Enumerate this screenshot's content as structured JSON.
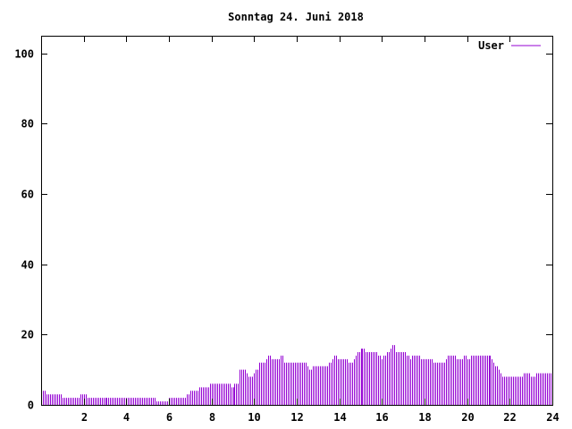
{
  "chart_data": {
    "type": "bar",
    "title": "Sonntag 24. Juni 2018",
    "xlabel": "",
    "ylabel": "",
    "xlim": [
      0,
      24
    ],
    "ylim": [
      0,
      105
    ],
    "x_ticks": [
      2,
      4,
      6,
      8,
      10,
      12,
      14,
      16,
      18,
      20,
      22,
      24
    ],
    "y_ticks": [
      0,
      20,
      40,
      60,
      80,
      100
    ],
    "grid": false,
    "legend_position": "top-right",
    "series": [
      {
        "name": "User",
        "color": "#9400d3",
        "interval_minutes": 5,
        "values": [
          5,
          4,
          4,
          3,
          3,
          3,
          3,
          3,
          3,
          3,
          3,
          3,
          2,
          2,
          2,
          2,
          2,
          2,
          2,
          2,
          2,
          2,
          3,
          3,
          3,
          3,
          2,
          2,
          2,
          2,
          2,
          2,
          2,
          2,
          2,
          2,
          2,
          2,
          2,
          2,
          2,
          2,
          2,
          2,
          2,
          2,
          2,
          2,
          2,
          2,
          2,
          2,
          2,
          2,
          2,
          2,
          2,
          2,
          2,
          2,
          2,
          2,
          2,
          2,
          2,
          1,
          1,
          1,
          1,
          1,
          1,
          1,
          2,
          2,
          2,
          2,
          2,
          2,
          2,
          2,
          2,
          2,
          3,
          3,
          4,
          4,
          4,
          4,
          4,
          5,
          5,
          5,
          5,
          5,
          5,
          6,
          6,
          6,
          6,
          6,
          6,
          6,
          6,
          6,
          6,
          6,
          6,
          5,
          5,
          6,
          6,
          6,
          10,
          10,
          10,
          10,
          9,
          8,
          8,
          8,
          9,
          10,
          10,
          12,
          12,
          12,
          12,
          13,
          14,
          14,
          13,
          13,
          13,
          13,
          13,
          14,
          14,
          12,
          12,
          12,
          12,
          12,
          12,
          12,
          12,
          12,
          12,
          12,
          12,
          12,
          11,
          10,
          10,
          11,
          11,
          11,
          11,
          11,
          11,
          11,
          11,
          11,
          12,
          12,
          13,
          14,
          14,
          13,
          13,
          13,
          13,
          13,
          13,
          12,
          12,
          12,
          13,
          14,
          15,
          15,
          16,
          16,
          16,
          15,
          15,
          15,
          15,
          15,
          15,
          15,
          14,
          14,
          13,
          14,
          14,
          15,
          15,
          16,
          17,
          17,
          15,
          15,
          15,
          15,
          15,
          15,
          14,
          14,
          13,
          14,
          14,
          14,
          14,
          14,
          13,
          13,
          13,
          13,
          13,
          13,
          13,
          12,
          12,
          12,
          12,
          12,
          12,
          12,
          13,
          14,
          14,
          14,
          14,
          14,
          13,
          13,
          13,
          13,
          14,
          14,
          13,
          13,
          14,
          14,
          14,
          14,
          14,
          14,
          14,
          14,
          14,
          14,
          14,
          14,
          13,
          12,
          11,
          11,
          10,
          9,
          8,
          8,
          8,
          8,
          8,
          8,
          8,
          8,
          8,
          8,
          8,
          8,
          9,
          9,
          9,
          9,
          8,
          8,
          8,
          9,
          9,
          9,
          9,
          9,
          9,
          9,
          9,
          9
        ]
      }
    ]
  }
}
